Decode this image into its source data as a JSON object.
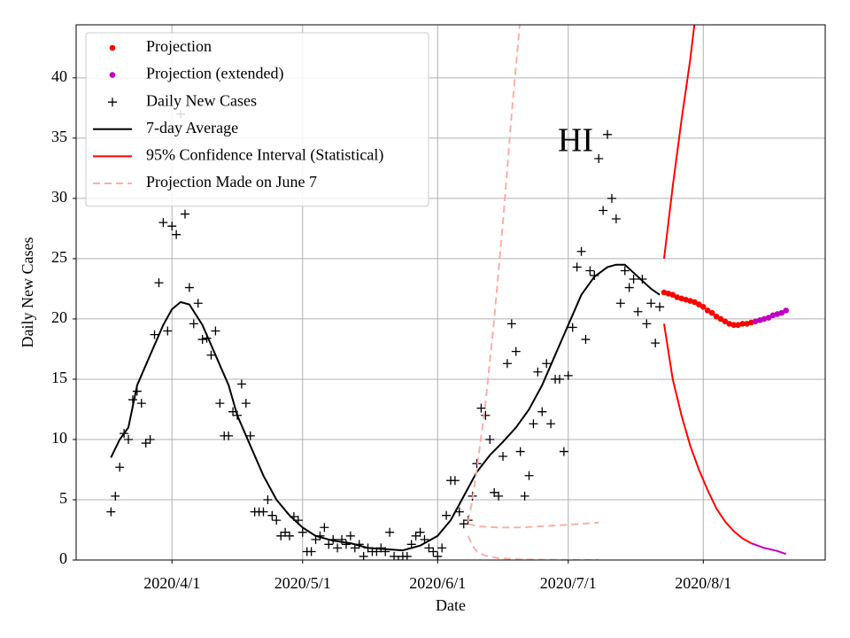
{
  "chart_data": {
    "type": "line",
    "xlabel": "Date",
    "ylabel": "Daily New Cases",
    "annotation": "HI",
    "xlim": [
      "2020-03-10",
      "2020-08-29"
    ],
    "ylim": [
      0,
      44.4
    ],
    "xticks": [
      {
        "value": "2020-04-01",
        "label": "2020/4/1"
      },
      {
        "value": "2020-05-01",
        "label": "2020/5/1"
      },
      {
        "value": "2020-06-01",
        "label": "2020/6/1"
      },
      {
        "value": "2020-07-01",
        "label": "2020/7/1"
      },
      {
        "value": "2020-08-01",
        "label": "2020/8/1"
      }
    ],
    "yticks": [
      0,
      5,
      10,
      15,
      20,
      25,
      30,
      35,
      40
    ],
    "grid": true,
    "legend": "upper left",
    "series": [
      {
        "name": "Projection",
        "color": "#ff0000",
        "style": "dot",
        "lines": [
          {
            "x": [
              "2020-07-23",
              "2020-07-24",
              "2020-07-25",
              "2020-07-26",
              "2020-07-27",
              "2020-07-28",
              "2020-07-29",
              "2020-07-30",
              "2020-07-31",
              "2020-08-01",
              "2020-08-02",
              "2020-08-03",
              "2020-08-04",
              "2020-08-05",
              "2020-08-06",
              "2020-08-07",
              "2020-08-08",
              "2020-08-09",
              "2020-08-10",
              "2020-08-11",
              "2020-08-12"
            ],
            "values": [
              22.2,
              22.1,
              22,
              21.8,
              21.7,
              21.6,
              21.5,
              21.4,
              21.2,
              21,
              20.7,
              20.5,
              20.2,
              20,
              19.8,
              19.6,
              19.5,
              19.5,
              19.6,
              19.6,
              19.7
            ]
          }
        ]
      },
      {
        "name": "Projection (extended)",
        "color": "#c000c0",
        "style": "dot",
        "lines": [
          {
            "x": [
              "2020-08-13",
              "2020-08-14",
              "2020-08-15",
              "2020-08-16",
              "2020-08-17",
              "2020-08-18",
              "2020-08-19",
              "2020-08-20"
            ],
            "values": [
              19.8,
              19.9,
              20,
              20.1,
              20.3,
              20.4,
              20.5,
              20.7
            ]
          }
        ]
      },
      {
        "name": "Daily New Cases",
        "color": "#000000",
        "style": "plus",
        "lines": [
          {
            "x": [
              "2020-03-18",
              "2020-03-19",
              "2020-03-20",
              "2020-03-21",
              "2020-03-22",
              "2020-03-23",
              "2020-03-24",
              "2020-03-25",
              "2020-03-26",
              "2020-03-27",
              "2020-03-28",
              "2020-03-29",
              "2020-03-30",
              "2020-03-31",
              "2020-04-01",
              "2020-04-02",
              "2020-04-03",
              "2020-04-04",
              "2020-04-05",
              "2020-04-06",
              "2020-04-07",
              "2020-04-08",
              "2020-04-09",
              "2020-04-10",
              "2020-04-11",
              "2020-04-12",
              "2020-04-13",
              "2020-04-14",
              "2020-04-15",
              "2020-04-16",
              "2020-04-17",
              "2020-04-18",
              "2020-04-19",
              "2020-04-20",
              "2020-04-21",
              "2020-04-22",
              "2020-04-23",
              "2020-04-24",
              "2020-04-25",
              "2020-04-26",
              "2020-04-27",
              "2020-04-28",
              "2020-04-29",
              "2020-04-30",
              "2020-05-01",
              "2020-05-02",
              "2020-05-03",
              "2020-05-04",
              "2020-05-05",
              "2020-05-06",
              "2020-05-07",
              "2020-05-08",
              "2020-05-09",
              "2020-05-10",
              "2020-05-11",
              "2020-05-12",
              "2020-05-13",
              "2020-05-14",
              "2020-05-15",
              "2020-05-16",
              "2020-05-17",
              "2020-05-18",
              "2020-05-19",
              "2020-05-20",
              "2020-05-21",
              "2020-05-22",
              "2020-05-23",
              "2020-05-24",
              "2020-05-25",
              "2020-05-26",
              "2020-05-27",
              "2020-05-28",
              "2020-05-29",
              "2020-05-30",
              "2020-05-31",
              "2020-06-01",
              "2020-06-02",
              "2020-06-03",
              "2020-06-04",
              "2020-06-05",
              "2020-06-06",
              "2020-06-07",
              "2020-06-08",
              "2020-06-09",
              "2020-06-10",
              "2020-06-11",
              "2020-06-12",
              "2020-06-13",
              "2020-06-14",
              "2020-06-15",
              "2020-06-16",
              "2020-06-17",
              "2020-06-18",
              "2020-06-19",
              "2020-06-20",
              "2020-06-21",
              "2020-06-22",
              "2020-06-23",
              "2020-06-24",
              "2020-06-25",
              "2020-06-26",
              "2020-06-27",
              "2020-06-28",
              "2020-06-29",
              "2020-06-30",
              "2020-07-01",
              "2020-07-02",
              "2020-07-03",
              "2020-07-04",
              "2020-07-05",
              "2020-07-06",
              "2020-07-07",
              "2020-07-08",
              "2020-07-09",
              "2020-07-10",
              "2020-07-11",
              "2020-07-12",
              "2020-07-13",
              "2020-07-14",
              "2020-07-15",
              "2020-07-16",
              "2020-07-17",
              "2020-07-18",
              "2020-07-19",
              "2020-07-20",
              "2020-07-21",
              "2020-07-22"
            ],
            "values": [
              4,
              5.3,
              7.7,
              10.5,
              10,
              13.3,
              14,
              13,
              9.7,
              10,
              18.7,
              23,
              28,
              19,
              27.7,
              27,
              37,
              28.7,
              22.6,
              19.6,
              21.3,
              18.3,
              18.4,
              17,
              19,
              13,
              10.3,
              10.3,
              12.3,
              12,
              14.6,
              13,
              10.3,
              4,
              4,
              4,
              5,
              3.7,
              3.3,
              2,
              2.3,
              2,
              3.6,
              3.3,
              2.3,
              0.7,
              0.7,
              1.7,
              2,
              2.7,
              1.3,
              1.7,
              1,
              1.7,
              1.3,
              2,
              1,
              1.3,
              0.3,
              1,
              0.7,
              0.7,
              1,
              0.7,
              2.3,
              0.3,
              0,
              0.3,
              0.3,
              1.3,
              2,
              2.3,
              1.7,
              1,
              0.7,
              0.3,
              1,
              3.7,
              6.6,
              6.6,
              4,
              3,
              3.3,
              5.3,
              8,
              12.6,
              12,
              10,
              5.6,
              5.3,
              8.6,
              16.3,
              19.6,
              17.3,
              9,
              5.3,
              7,
              11.3,
              15.6,
              12.3,
              16.3,
              11.3,
              15,
              15,
              9,
              15.3,
              19.3,
              24.3,
              25.6,
              18.3,
              24,
              23.6,
              33.3,
              29,
              35.3,
              30,
              28.3,
              21.3,
              24,
              22.6,
              23.3,
              20.6,
              23.3,
              19.6,
              21.3,
              18,
              21
            ]
          }
        ]
      },
      {
        "name": "7-day Average",
        "color": "#000000",
        "style": "solid",
        "lines": [
          {
            "x": [
              "2020-03-18",
              "2020-03-20",
              "2020-03-22",
              "2020-03-24",
              "2020-03-27",
              "2020-03-30",
              "2020-04-01",
              "2020-04-03",
              "2020-04-05",
              "2020-04-08",
              "2020-04-11",
              "2020-04-14",
              "2020-04-16",
              "2020-04-19",
              "2020-04-22",
              "2020-04-25",
              "2020-04-28",
              "2020-05-01",
              "2020-05-04",
              "2020-05-08",
              "2020-05-12",
              "2020-05-16",
              "2020-05-20",
              "2020-05-24",
              "2020-05-28",
              "2020-06-01",
              "2020-06-04",
              "2020-06-07",
              "2020-06-10",
              "2020-06-13",
              "2020-06-16",
              "2020-06-19",
              "2020-06-22",
              "2020-06-25",
              "2020-06-28",
              "2020-07-01",
              "2020-07-04",
              "2020-07-07",
              "2020-07-10",
              "2020-07-12",
              "2020-07-14",
              "2020-07-17",
              "2020-07-20",
              "2020-07-22"
            ],
            "values": [
              8.5,
              10,
              11,
              14.5,
              17,
              19.5,
              20.8,
              21.4,
              21.2,
              19.5,
              17,
              14.5,
              12,
              9.5,
              7,
              5,
              3.7,
              2.7,
              2,
              1.6,
              1.4,
              1,
              0.9,
              0.8,
              1.2,
              2,
              3.3,
              5.3,
              7.3,
              8.7,
              9.8,
              11,
              12.5,
              14.5,
              17,
              19.5,
              22,
              23.5,
              24.3,
              24.5,
              24.5,
              23.5,
              22.5,
              22
            ]
          }
        ]
      },
      {
        "name": "95% Confidence Interval (Statistical)",
        "color": "#ff0000",
        "style": "solid",
        "lines": [
          {
            "color": "#ff0000",
            "x": [
              "2020-07-23",
              "2020-07-25",
              "2020-07-27",
              "2020-07-29",
              "2020-07-30"
            ],
            "values": [
              25,
              31,
              36.5,
              41.5,
              44.5
            ]
          },
          {
            "color": "#ff0000",
            "x": [
              "2020-07-23",
              "2020-07-25",
              "2020-07-27",
              "2020-07-29",
              "2020-07-31",
              "2020-08-02",
              "2020-08-04",
              "2020-08-06",
              "2020-08-08",
              "2020-08-10",
              "2020-08-12"
            ],
            "values": [
              19.6,
              15,
              12,
              9.5,
              7.5,
              5.8,
              4.3,
              3.2,
              2.4,
              1.8,
              1.4
            ]
          },
          {
            "color": "#c000c0",
            "x": [
              "2020-08-12",
              "2020-08-15",
              "2020-08-18",
              "2020-08-20"
            ],
            "values": [
              1.4,
              1,
              0.75,
              0.5
            ]
          }
        ]
      },
      {
        "name": "Projection Made on June 7",
        "color": "#f8b0a8",
        "style": "dashed",
        "lines": [
          {
            "x": [
              "2020-06-08",
              "2020-06-09",
              "2020-06-10",
              "2020-06-12",
              "2020-06-14",
              "2020-06-16",
              "2020-06-18",
              "2020-06-20"
            ],
            "values": [
              3.2,
              5,
              7.5,
              13,
              20,
              28,
              37,
              45
            ]
          },
          {
            "x": [
              "2020-06-08",
              "2020-06-10",
              "2020-06-15",
              "2020-06-20",
              "2020-06-25",
              "2020-06-30",
              "2020-07-08"
            ],
            "values": [
              3,
              2.8,
              2.7,
              2.7,
              2.8,
              2.9,
              3.1
            ]
          },
          {
            "x": [
              "2020-06-08",
              "2020-06-09",
              "2020-06-10",
              "2020-06-12",
              "2020-06-15",
              "2020-06-20",
              "2020-06-30",
              "2020-07-08"
            ],
            "values": [
              2,
              1.2,
              0.7,
              0.35,
              0.15,
              0.05,
              0,
              0
            ]
          }
        ]
      }
    ]
  }
}
